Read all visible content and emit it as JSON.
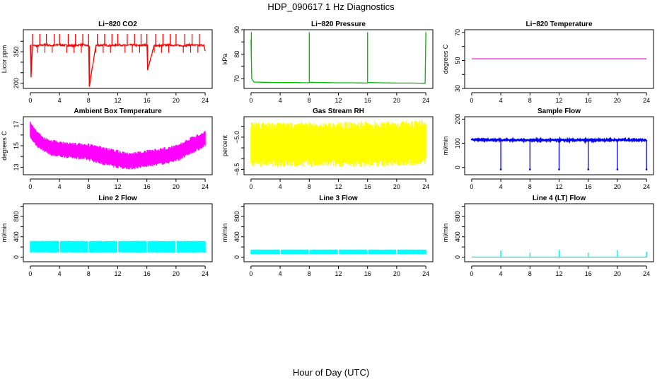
{
  "figure": {
    "title": "HDP_090617  1 Hz Diagnostics",
    "xlabel": "Hour of Day (UTC)"
  },
  "chart_data": [
    {
      "type": "line",
      "title": "Li−820 CO2",
      "ylabel": "Licor ppm",
      "color": "#ff0000",
      "xlim": [
        0,
        24
      ],
      "ylim": [
        175,
        455
      ],
      "yticks": [
        200,
        250,
        300,
        350,
        400
      ],
      "ytick_labels": [
        "200",
        "",
        "",
        "350",
        ""
      ],
      "xticks": [
        0,
        4,
        8,
        12,
        16,
        20,
        24
      ],
      "x": [
        0,
        0.1,
        0.3,
        1.0,
        2.0,
        3.0,
        4.0,
        5.0,
        6.0,
        7.0,
        8.0,
        8.1,
        9,
        10,
        11,
        12,
        13,
        14,
        15,
        16,
        16.1,
        17,
        18,
        19,
        20,
        21,
        22,
        23,
        23.8,
        24
      ],
      "values": [
        385,
        230,
        380,
        378,
        384,
        379,
        384,
        380,
        379,
        384,
        378,
        183,
        380,
        382,
        379,
        383,
        380,
        382,
        379,
        384,
        265,
        380,
        379,
        383,
        380,
        379,
        383,
        380,
        382,
        350
      ],
      "spikes_up_at": [
        0.3,
        1.3,
        2.2,
        3.3,
        4.0,
        5.2,
        6.2,
        7.2,
        8.0,
        9.2,
        10.2,
        11.2,
        12.0,
        13.3,
        14.3,
        15.2,
        16.0,
        17.2,
        18.2,
        19.2,
        20.0,
        21.2,
        22.2,
        23.2
      ],
      "spike_up_value": 435,
      "spikes_down_at": [
        1.0,
        2.0,
        3.0,
        5.0,
        6.0,
        7.0,
        9.0,
        10.0,
        11.0,
        13.0,
        14.0,
        15.0,
        17.0,
        18.0,
        19.0,
        21.0,
        22.0,
        23.0
      ],
      "spike_down_value": 345
    },
    {
      "type": "line",
      "title": "Li−820 Pressure",
      "ylabel": "kPa",
      "color": "#00bb00",
      "xlim": [
        0,
        24
      ],
      "ylim": [
        66,
        90
      ],
      "yticks": [
        70,
        75,
        80,
        85,
        90
      ],
      "ytick_labels": [
        "70",
        "",
        "80",
        "",
        "90"
      ],
      "xticks": [
        0,
        4,
        8,
        12,
        16,
        20,
        24
      ],
      "x": [
        0,
        0.1,
        0.4,
        2,
        4,
        6,
        7.9,
        8.1,
        10,
        12,
        14,
        15.9,
        16.1,
        18,
        20,
        22,
        23.9,
        24
      ],
      "values": [
        86,
        70,
        68.6,
        68.5,
        68.4,
        68.4,
        68.3,
        68.5,
        68.4,
        68.3,
        68.3,
        68.2,
        68.4,
        68.3,
        68.2,
        68.2,
        68.1,
        89
      ],
      "spikes_up_at": [
        0.05,
        8.0,
        16.0,
        24.0
      ],
      "spike_up_value": 89
    },
    {
      "type": "line",
      "title": "Li−820 Temperature",
      "ylabel": "degrees C",
      "color": "#ff00ff",
      "xlim": [
        0,
        24
      ],
      "ylim": [
        30,
        72
      ],
      "yticks": [
        30,
        40,
        50,
        60,
        70
      ],
      "ytick_labels": [
        "30",
        "",
        "50",
        "",
        "70"
      ],
      "xticks": [
        0,
        4,
        8,
        12,
        16,
        20,
        24
      ],
      "x": [
        0,
        24
      ],
      "values": [
        51.2,
        51.2
      ]
    },
    {
      "type": "area",
      "title": "Ambient Box Temperature",
      "ylabel": "degrees C",
      "color": "#ff00ff",
      "xlim": [
        0,
        24
      ],
      "ylim": [
        12.3,
        17.7
      ],
      "yticks": [
        13,
        14,
        15,
        16,
        17
      ],
      "ytick_labels": [
        "13",
        "",
        "15",
        "",
        "17"
      ],
      "xticks": [
        0,
        4,
        8,
        12,
        16,
        20,
        24
      ],
      "x": [
        0,
        0.5,
        1,
        2,
        3,
        4,
        6,
        8,
        10,
        12,
        13,
        14,
        16,
        18,
        20,
        21,
        22,
        23,
        24
      ],
      "upper": [
        17.3,
        16.8,
        16.3,
        15.8,
        15.6,
        15.4,
        15.3,
        15.2,
        14.9,
        14.6,
        14.4,
        14.4,
        14.6,
        14.8,
        15.1,
        15.4,
        15.8,
        16.1,
        16.4
      ],
      "lower": [
        15.6,
        15.2,
        14.8,
        14.4,
        14.0,
        13.9,
        13.8,
        13.6,
        13.2,
        12.9,
        12.8,
        12.8,
        13.0,
        13.2,
        13.5,
        13.8,
        14.2,
        14.5,
        14.9
      ]
    },
    {
      "type": "area",
      "title": "Gas Stream RH",
      "ylabel": "percent",
      "color": "#ffff00",
      "xlim": [
        0,
        24
      ],
      "ylim": [
        -6.75,
        -4.05
      ],
      "yticks": [
        -6.5,
        -6.0,
        -5.5,
        -5.0,
        -4.5
      ],
      "ytick_labels": [
        "−6.5",
        "",
        "",
        "−5.0",
        ""
      ],
      "xticks": [
        0,
        4,
        8,
        12,
        16,
        20,
        24
      ],
      "x": [
        0,
        4,
        8,
        12,
        16,
        20,
        24
      ],
      "upper": [
        -4.3,
        -4.3,
        -4.3,
        -4.3,
        -4.25,
        -4.25,
        -4.2
      ],
      "lower": [
        -6.35,
        -6.4,
        -6.4,
        -6.4,
        -6.4,
        -6.35,
        -6.3
      ]
    },
    {
      "type": "line",
      "title": "Sample Flow",
      "ylabel": "ml/min",
      "color": "#0000ee",
      "xlim": [
        0,
        24
      ],
      "ylim": [
        -30,
        210
      ],
      "yticks": [
        0,
        100,
        200
      ],
      "ytick_labels": [
        "0",
        "100",
        "200"
      ],
      "xticks": [
        0,
        4,
        8,
        12,
        16,
        20,
        24
      ],
      "x": [
        0,
        4,
        8,
        12,
        16,
        20,
        24
      ],
      "values": [
        115,
        114,
        113,
        113,
        113,
        114,
        114
      ],
      "band": 6,
      "dips_at": [
        4.0,
        8.0,
        12.0,
        16.0,
        20.0,
        24.0
      ],
      "dip_value": -8
    },
    {
      "type": "area",
      "title": "Line 2 Flow",
      "ylabel": "ml/min",
      "color": "#00ffff",
      "xlim": [
        0,
        24
      ],
      "ylim": [
        -90,
        1050
      ],
      "yticks": [
        0,
        200,
        400,
        600,
        800,
        1000
      ],
      "ytick_labels": [
        "0",
        "",
        "400",
        "",
        "800",
        ""
      ],
      "xticks": [
        0,
        4,
        8,
        12,
        16,
        20,
        24
      ],
      "x": [
        0,
        24
      ],
      "upper": [
        320,
        320
      ],
      "lower": [
        90,
        90
      ],
      "gaps_at": [
        4,
        8,
        12,
        16,
        20
      ]
    },
    {
      "type": "area",
      "title": "Line 3 Flow",
      "ylabel": "ml/min",
      "color": "#00ffff",
      "xlim": [
        0,
        24
      ],
      "ylim": [
        -90,
        1050
      ],
      "yticks": [
        0,
        200,
        400,
        600,
        800,
        1000
      ],
      "ytick_labels": [
        "0",
        "",
        "400",
        "",
        "800",
        ""
      ],
      "xticks": [
        0,
        4,
        8,
        12,
        16,
        20,
        24
      ],
      "x": [
        0,
        24
      ],
      "upper": [
        150,
        150
      ],
      "lower": [
        60,
        60
      ],
      "gaps_at": [
        4,
        8,
        12,
        16,
        20
      ]
    },
    {
      "type": "line",
      "title": "Line 4 (LT) Flow",
      "ylabel": "ml/min",
      "color": "#00e5e5",
      "xlim": [
        0,
        24
      ],
      "ylim": [
        -90,
        1050
      ],
      "yticks": [
        0,
        200,
        400,
        600,
        800,
        1000
      ],
      "ytick_labels": [
        "0",
        "",
        "400",
        "",
        "800",
        ""
      ],
      "xticks": [
        0,
        4,
        8,
        12,
        16,
        20,
        24
      ],
      "x": [
        0,
        24
      ],
      "values": [
        2,
        2
      ],
      "spikes_up_at": [
        4,
        8,
        12,
        16,
        20,
        24
      ],
      "spike_up_values": [
        130,
        90,
        140,
        90,
        140,
        110
      ]
    }
  ]
}
